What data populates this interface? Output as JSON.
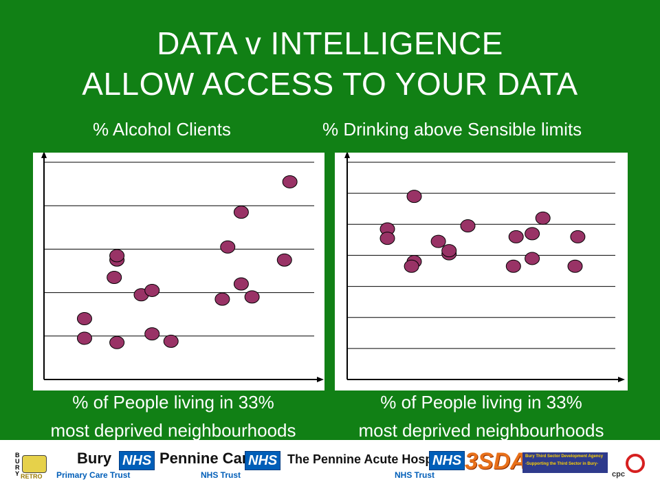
{
  "title": {
    "line1": "DATA v INTELLIGENCE",
    "line2": "ALLOW ACCESS TO YOUR DATA"
  },
  "colors": {
    "background": "#118015",
    "marker_fill": "#993366",
    "nhs_blue": "#005eb8",
    "text": "#ffffff"
  },
  "chart_data": [
    {
      "type": "scatter",
      "title": "% Alcohol Clients",
      "xlabel_line1": "% of People living in 33%",
      "xlabel_line2": "most deprived neighbourhoods",
      "ylabel": "",
      "grid": true,
      "xlim": [
        0,
        100
      ],
      "ylim": [
        0,
        5
      ],
      "points": [
        {
          "x": 15,
          "y": 1.4
        },
        {
          "x": 15,
          "y": 0.95
        },
        {
          "x": 27,
          "y": 0.85
        },
        {
          "x": 26,
          "y": 2.35
        },
        {
          "x": 27,
          "y": 2.75
        },
        {
          "x": 27,
          "y": 2.85
        },
        {
          "x": 36,
          "y": 1.95
        },
        {
          "x": 40,
          "y": 2.05
        },
        {
          "x": 40,
          "y": 1.05
        },
        {
          "x": 47,
          "y": 0.88
        },
        {
          "x": 66,
          "y": 1.85
        },
        {
          "x": 68,
          "y": 3.05
        },
        {
          "x": 73,
          "y": 3.85
        },
        {
          "x": 73,
          "y": 2.2
        },
        {
          "x": 77,
          "y": 1.9
        },
        {
          "x": 89,
          "y": 2.75
        },
        {
          "x": 91,
          "y": 4.55
        }
      ]
    },
    {
      "type": "scatter",
      "title": "% Drinking above Sensible limits",
      "xlabel_line1": "% of People living in 33%",
      "xlabel_line2": "most deprived neighbourhoods",
      "ylabel": "",
      "grid": true,
      "xlim": [
        0,
        100
      ],
      "ylim": [
        0,
        7
      ],
      "points": [
        {
          "x": 15,
          "y": 4.85
        },
        {
          "x": 15,
          "y": 4.55
        },
        {
          "x": 25,
          "y": 5.9
        },
        {
          "x": 25,
          "y": 3.8
        },
        {
          "x": 24,
          "y": 3.65
        },
        {
          "x": 34,
          "y": 4.45
        },
        {
          "x": 38,
          "y": 4.05
        },
        {
          "x": 38,
          "y": 4.15
        },
        {
          "x": 45,
          "y": 4.95
        },
        {
          "x": 62,
          "y": 3.65
        },
        {
          "x": 63,
          "y": 4.6
        },
        {
          "x": 69,
          "y": 4.7
        },
        {
          "x": 69,
          "y": 3.9
        },
        {
          "x": 73,
          "y": 5.2
        },
        {
          "x": 85,
          "y": 3.65
        },
        {
          "x": 86,
          "y": 4.6
        }
      ]
    }
  ],
  "footer": {
    "bury_retro": "RETRO",
    "bury_letters": "BURY",
    "bury": "Bury",
    "primary_care_trust": "Primary Care Trust",
    "nhs": "NHS",
    "pennine_care": "Pennine Care",
    "nhs_trust": "NHS Trust",
    "pennine_acute": "The Pennine Acute Hospitals",
    "nhs_trust_2": "NHS Trust",
    "tsda": "3SDA",
    "tsda_line1": "Bury Third Sector Development Agency",
    "tsda_line2": "-Supporting the Third Sector in Bury-",
    "cpc": "cpc"
  }
}
